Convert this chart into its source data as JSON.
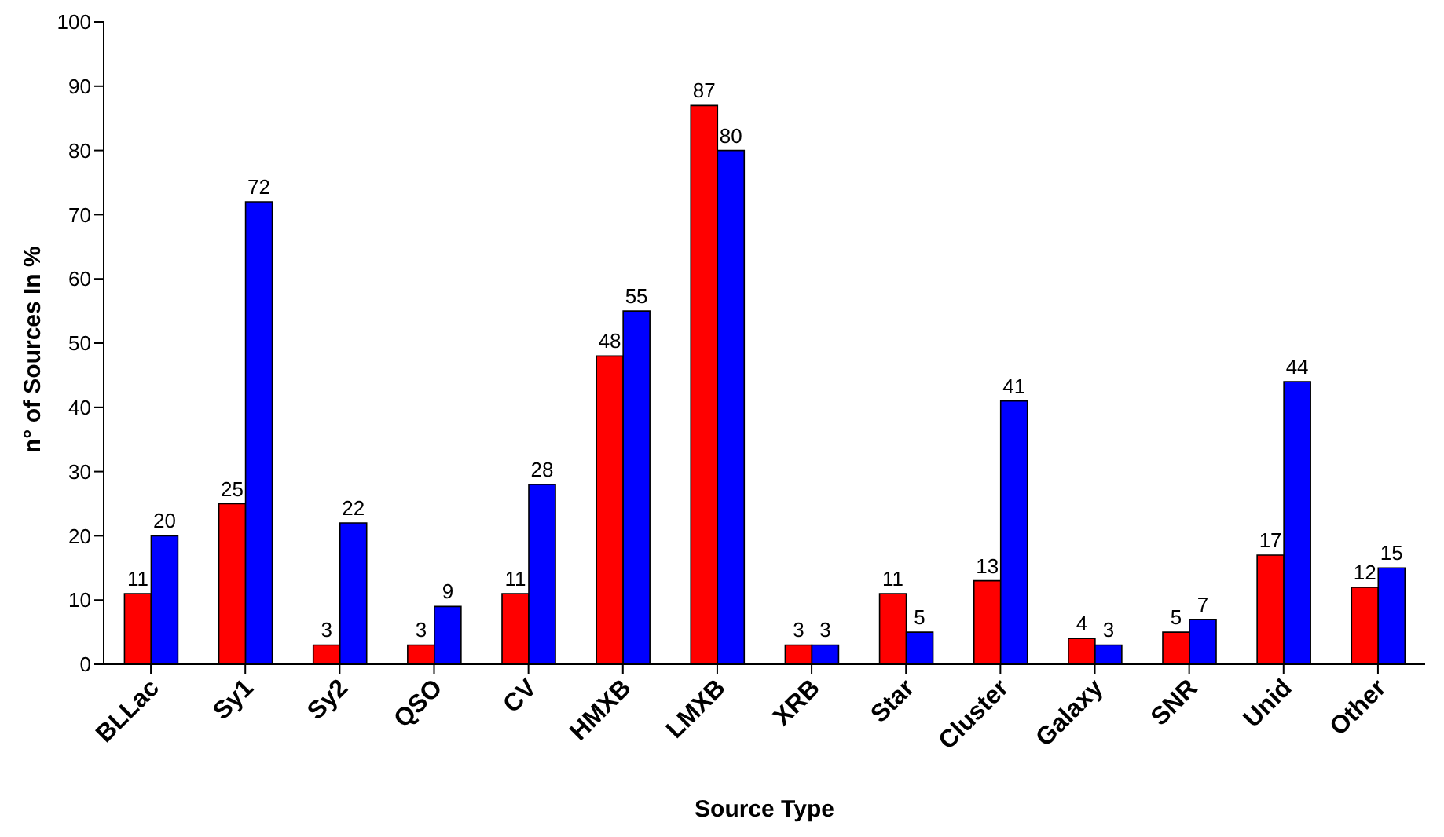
{
  "chart_data": {
    "type": "bar",
    "xlabel": "Source Type",
    "ylabel": "n° of Sources In %",
    "categories": [
      "BLLac",
      "Sy1",
      "Sy2",
      "QSO",
      "CV",
      "HMXB",
      "LMXB",
      "XRB",
      "Star",
      "Cluster",
      "Galaxy",
      "SNR",
      "Unid",
      "Other"
    ],
    "series": [
      {
        "color": "#ff0000",
        "values": [
          11,
          25,
          3,
          3,
          11,
          48,
          87,
          3,
          11,
          13,
          4,
          5,
          17,
          12
        ]
      },
      {
        "color": "#0000ff",
        "values": [
          20,
          72,
          22,
          9,
          28,
          55,
          80,
          3,
          5,
          41,
          3,
          7,
          44,
          15
        ]
      }
    ],
    "ylim": [
      0,
      100
    ],
    "yticks": [
      0,
      10,
      20,
      30,
      40,
      50,
      60,
      70,
      80,
      90,
      100
    ],
    "data_labels": true,
    "grid": false,
    "legend": false
  }
}
